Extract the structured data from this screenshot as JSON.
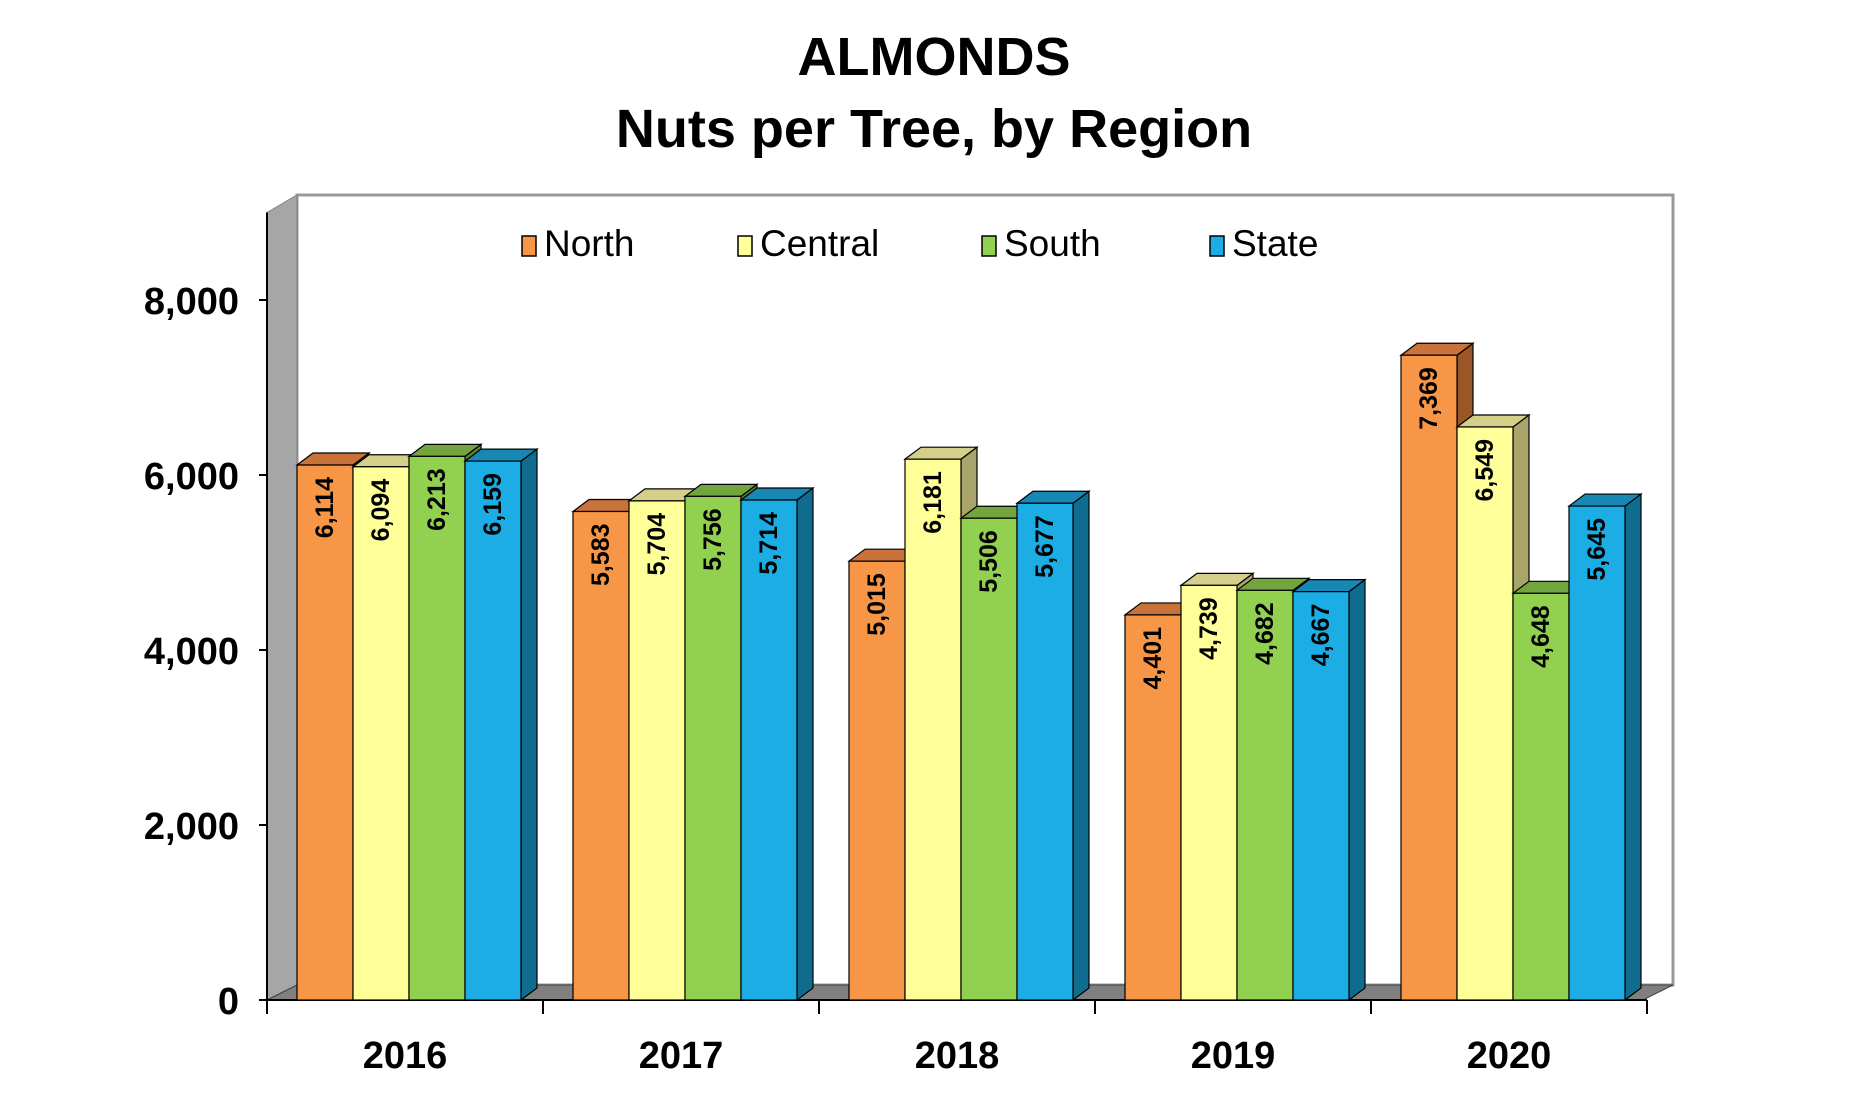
{
  "chart_data": {
    "type": "bar",
    "title": "ALMONDS",
    "subtitle": "Nuts per Tree, by Region",
    "categories": [
      "2016",
      "2017",
      "2018",
      "2019",
      "2020"
    ],
    "series": [
      {
        "name": "North",
        "values": [
          6114,
          5583,
          5015,
          4401,
          7369
        ],
        "labels": [
          "6,114",
          "5,583",
          "5,015",
          "4,401",
          "7,369"
        ]
      },
      {
        "name": "Central",
        "values": [
          6094,
          5704,
          6181,
          4739,
          6549
        ],
        "labels": [
          "6,094",
          "5,704",
          "6,181",
          "4,739",
          "6,549"
        ]
      },
      {
        "name": "South",
        "values": [
          6213,
          5756,
          5506,
          4682,
          4648
        ],
        "labels": [
          "6,213",
          "5,756",
          "5,506",
          "4,682",
          "4,648"
        ]
      },
      {
        "name": "State",
        "values": [
          6159,
          5714,
          5677,
          4667,
          5645
        ],
        "labels": [
          "6,159",
          "5,714",
          "5,677",
          "4,667",
          "5,645"
        ]
      }
    ],
    "ylim": [
      0,
      9000
    ],
    "yticks": [
      0,
      2000,
      4000,
      6000,
      8000
    ],
    "ytick_labels": [
      "0",
      "2,000",
      "4,000",
      "6,000",
      "8,000"
    ],
    "legend_position": "top",
    "grid": false,
    "style": "3d-clustered-column",
    "colors": {
      "North": {
        "face": "#F79646",
        "top": "#C8733A",
        "side": "#9A5626"
      },
      "Central": {
        "face": "#FFFF99",
        "top": "#D4D08A",
        "side": "#A8A46A"
      },
      "South": {
        "face": "#92D050",
        "top": "#72A53E",
        "side": "#58822E"
      },
      "State": {
        "face": "#1CADE4",
        "top": "#1787B3",
        "side": "#106C8E"
      },
      "wall": "#ffffff",
      "wall_border": "#999999",
      "side_wall": "#A6A6A6",
      "floor": "#808080"
    }
  }
}
